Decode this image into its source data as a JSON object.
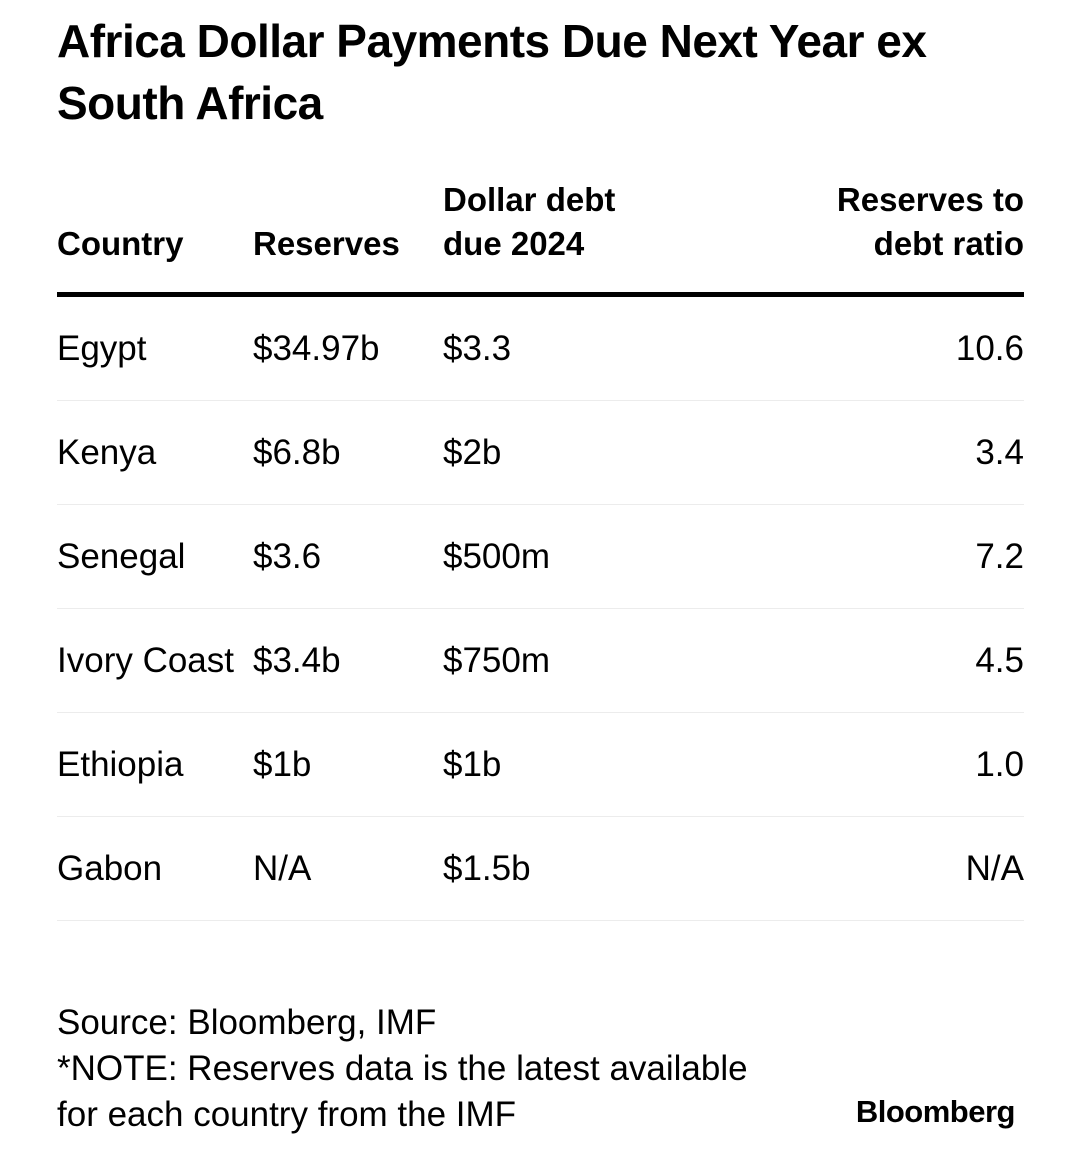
{
  "chart_data": {
    "type": "table",
    "title": "Africa Dollar Payments Due Next Year ex South Africa",
    "columns": [
      "Country",
      "Reserves",
      "Dollar debt\ndue 2024",
      "Reserves to\ndebt ratio"
    ],
    "rows": [
      {
        "country": "Egypt",
        "reserves": "$34.97b",
        "debt": "$3.3",
        "ratio": "10.6"
      },
      {
        "country": "Kenya",
        "reserves": "$6.8b",
        "debt": "$2b",
        "ratio": "3.4"
      },
      {
        "country": "Senegal",
        "reserves": "$3.6",
        "debt": "$500m",
        "ratio": "7.2"
      },
      {
        "country": "Ivory Coast",
        "reserves": "$3.4b",
        "debt": "$750m",
        "ratio": "4.5"
      },
      {
        "country": "Ethiopia",
        "reserves": "$1b",
        "debt": "$1b",
        "ratio": "1.0"
      },
      {
        "country": "Gabon",
        "reserves": "N/A",
        "debt": "$1.5b",
        "ratio": "N/A"
      }
    ],
    "source": "Source: Bloomberg, IMF",
    "note": "*NOTE: Reserves data is the latest available for each country from the IMF",
    "brand": "Bloomberg"
  }
}
